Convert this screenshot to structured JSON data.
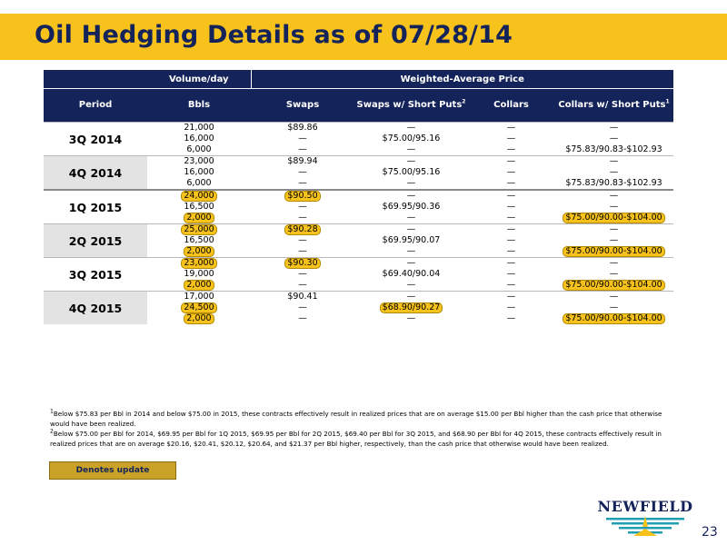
{
  "title": "Oil Hedging Details as of 07/28/14",
  "header": {
    "volume_day": "Volume/day",
    "wap": "Weighted-Average Price",
    "period": "Period",
    "bbls": "Bbls",
    "swaps": "Swaps",
    "swaps_short_puts": "Swaps w/ Short Puts",
    "swaps_short_puts_sup": "2",
    "collars": "Collars",
    "collars_short_puts": "Collars w/ Short Puts",
    "collars_short_puts_sup": "1"
  },
  "rows": [
    {
      "period": "3Q 2014",
      "shaded": false,
      "bbls": [
        "21,000",
        "16,000",
        "6,000"
      ],
      "swaps": [
        "$89.86",
        "—",
        "—"
      ],
      "swaps_short_puts": [
        "—",
        "$75.00/95.16",
        "—"
      ],
      "collars": [
        "—",
        "—",
        "—"
      ],
      "collars_short_puts": [
        "—",
        "—",
        "$75.83/90.83-$102.93"
      ]
    },
    {
      "period": "4Q 2014",
      "shaded": true,
      "bbls": [
        "23,000",
        "16,000",
        "6,000"
      ],
      "swaps": [
        "$89.94",
        "—",
        "—"
      ],
      "swaps_short_puts": [
        "—",
        "$75.00/95.16",
        "—"
      ],
      "collars": [
        "—",
        "—",
        "—"
      ],
      "collars_short_puts": [
        "—",
        "—",
        "$75.83/90.83-$102.93"
      ]
    },
    {
      "period": "1Q 2015",
      "shaded": false,
      "bbls": [
        "24,000",
        "16,500",
        "2,000"
      ],
      "swaps": [
        "$90.50",
        "—",
        "—"
      ],
      "swaps_short_puts": [
        "—",
        "$69.95/90.36",
        "—"
      ],
      "collars": [
        "—",
        "—",
        "—"
      ],
      "collars_short_puts": [
        "—",
        "—",
        "$75.00/90.00-$104.00"
      ]
    },
    {
      "period": "2Q 2015",
      "shaded": true,
      "bbls": [
        "25,000",
        "16,500",
        "2,000"
      ],
      "swaps": [
        "$90.28",
        "—",
        "—"
      ],
      "swaps_short_puts": [
        "—",
        "$69.95/90.07",
        "—"
      ],
      "collars": [
        "—",
        "—",
        "—"
      ],
      "collars_short_puts": [
        "—",
        "—",
        "$75.00/90.00-$104.00"
      ]
    },
    {
      "period": "3Q 2015",
      "shaded": false,
      "bbls": [
        "23,000",
        "19,000",
        "2,000"
      ],
      "swaps": [
        "$90.30",
        "—",
        "—"
      ],
      "swaps_short_puts": [
        "—",
        "$69.40/90.04",
        "—"
      ],
      "collars": [
        "—",
        "—",
        "—"
      ],
      "collars_short_puts": [
        "—",
        "—",
        "$75.00/90.00-$104.00"
      ]
    },
    {
      "period": "4Q 2015",
      "shaded": true,
      "bbls": [
        "17,000",
        "24,500",
        "2,000"
      ],
      "swaps": [
        "$90.41",
        "—",
        "—"
      ],
      "swaps_short_puts": [
        "—",
        "$68.90/90.27",
        "—"
      ],
      "collars": [
        "—",
        "—",
        "—"
      ],
      "collars_short_puts": [
        "—",
        "—",
        "$75.00/90.00-$104.00"
      ]
    }
  ],
  "footnotes": {
    "note1_marker": "1",
    "note1": "Below $75.83 per Bbl in 2014 and below $75.00 in 2015, these contracts effectively result in realized prices that are on average $15.00 per Bbl higher than the cash price that otherwise would have been realized.",
    "note2_marker": "2",
    "note2": "Below $75.00 per Bbl for 2014, $69.95 per Bbl for 1Q 2015, $69.95 per Bbl for 2Q 2015, $69.40 per Bbl for 3Q 2015, and $68.90 per Bbl for 4Q 2015, these contracts effectively result in realized prices that are on average $20.16, $20.41, $20.12, $20.64, and $21.37 per Bbl higher, respectively, than the cash price that otherwise would have been realized."
  },
  "legend_label": "Denotes update",
  "logo_text": "NEWFIELD",
  "page_number": "23",
  "colors": {
    "navy": "#14235a",
    "gold": "#f7c21b",
    "update_fill": "#c9a227",
    "shade": "#e3e3e3"
  }
}
